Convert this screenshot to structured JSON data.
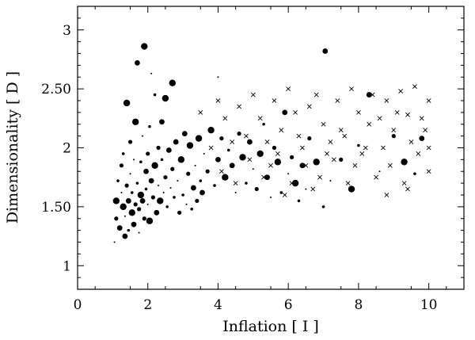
{
  "chart_data": {
    "type": "scatter",
    "xlabel": "Inflation [ I ]",
    "ylabel": "Dimensionality [ D ]",
    "xlim": [
      0,
      11
    ],
    "ylim": [
      0.8,
      3.2
    ],
    "xticks": [
      0,
      2,
      4,
      6,
      8,
      10
    ],
    "yticks": [
      1,
      1.5,
      2,
      2.5,
      3
    ],
    "xtick_labels": [
      "0",
      "2",
      "4",
      "6",
      "8",
      "10"
    ],
    "ytick_labels": [
      "1",
      "1.50",
      "2",
      "2.50",
      "3"
    ],
    "grid": false,
    "marker_color": "#000000",
    "series": [
      {
        "marker": "dot",
        "points": [
          [
            1.05,
            1.2
          ],
          [
            1.1,
            1.4
          ],
          [
            1.1,
            1.55
          ],
          [
            1.15,
            1.72
          ],
          [
            1.2,
            1.32
          ],
          [
            1.25,
            1.62
          ],
          [
            1.25,
            1.85
          ],
          [
            1.3,
            1.5
          ],
          [
            1.3,
            1.95
          ],
          [
            1.35,
            1.25
          ],
          [
            1.35,
            1.42
          ],
          [
            1.4,
            1.68
          ],
          [
            1.4,
            2.38
          ],
          [
            1.45,
            1.3
          ],
          [
            1.45,
            1.55
          ],
          [
            1.5,
            1.78
          ],
          [
            1.5,
            2.05
          ],
          [
            1.55,
            1.45
          ],
          [
            1.55,
            1.62
          ],
          [
            1.6,
            1.35
          ],
          [
            1.6,
            1.9
          ],
          [
            1.65,
            1.52
          ],
          [
            1.65,
            2.22
          ],
          [
            1.7,
            1.7
          ],
          [
            1.7,
            2.72
          ],
          [
            1.75,
            1.28
          ],
          [
            1.75,
            1.48
          ],
          [
            1.8,
            1.6
          ],
          [
            1.8,
            1.88
          ],
          [
            1.85,
            1.55
          ],
          [
            1.85,
            2.1
          ],
          [
            1.9,
            1.4
          ],
          [
            1.9,
            2.86
          ],
          [
            1.95,
            1.65
          ],
          [
            1.95,
            1.8
          ],
          [
            2.0,
            1.52
          ],
          [
            2.0,
            1.95
          ],
          [
            2.05,
            1.38
          ],
          [
            2.05,
            2.18
          ],
          [
            2.1,
            1.72
          ],
          [
            2.1,
            2.63
          ],
          [
            2.15,
            1.58
          ],
          [
            2.2,
            1.85
          ],
          [
            2.2,
            2.45
          ],
          [
            2.25,
            1.45
          ],
          [
            2.3,
            1.68
          ],
          [
            2.3,
            2.0
          ],
          [
            2.35,
            1.55
          ],
          [
            2.4,
            1.9
          ],
          [
            2.4,
            2.22
          ],
          [
            2.45,
            1.62
          ],
          [
            2.5,
            1.75
          ],
          [
            2.5,
            2.42
          ],
          [
            2.55,
            1.5
          ],
          [
            2.6,
            1.98
          ],
          [
            2.65,
            1.66
          ],
          [
            2.7,
            1.82
          ],
          [
            2.7,
            2.55
          ],
          [
            2.75,
            1.58
          ],
          [
            2.8,
            2.05
          ],
          [
            2.85,
            1.72
          ],
          [
            2.9,
            1.45
          ],
          [
            2.95,
            1.9
          ],
          [
            3.0,
            1.6
          ],
          [
            3.05,
            2.12
          ],
          [
            3.1,
            1.52
          ],
          [
            3.15,
            1.78
          ],
          [
            3.2,
            2.02
          ],
          [
            3.25,
            1.48
          ],
          [
            3.3,
            1.66
          ],
          [
            3.35,
            1.85
          ],
          [
            3.4,
            1.55
          ],
          [
            3.45,
            2.08
          ],
          [
            3.5,
            1.72
          ],
          [
            3.55,
            1.62
          ],
          [
            3.6,
            1.95
          ],
          [
            3.7,
            1.8
          ],
          [
            3.8,
            2.15
          ],
          [
            3.9,
            1.68
          ],
          [
            4.0,
            1.9
          ],
          [
            4.0,
            2.6
          ],
          [
            4.1,
            2.08
          ],
          [
            4.2,
            1.75
          ],
          [
            4.3,
            1.98
          ],
          [
            4.4,
            1.85
          ],
          [
            4.5,
            1.62
          ],
          [
            4.6,
            2.12
          ],
          [
            4.7,
            1.92
          ],
          [
            4.8,
            1.7
          ],
          [
            4.9,
            2.05
          ],
          [
            5.0,
            1.82
          ],
          [
            5.1,
            1.65
          ],
          [
            5.2,
            1.95
          ],
          [
            5.3,
            2.2
          ],
          [
            5.4,
            1.75
          ],
          [
            5.5,
            1.58
          ],
          [
            5.6,
            2.0
          ],
          [
            5.7,
            1.88
          ],
          [
            5.8,
            1.62
          ],
          [
            5.9,
            2.3
          ],
          [
            6.0,
            1.78
          ],
          [
            6.1,
            1.92
          ],
          [
            6.2,
            1.7
          ],
          [
            6.3,
            1.55
          ],
          [
            6.4,
            1.85
          ],
          [
            6.5,
            1.65
          ],
          [
            6.6,
            2.08
          ],
          [
            6.8,
            1.88
          ],
          [
            7.0,
            1.5
          ],
          [
            7.05,
            2.82
          ],
          [
            7.2,
            1.72
          ],
          [
            7.5,
            1.9
          ],
          [
            7.8,
            1.65
          ],
          [
            8.0,
            2.02
          ],
          [
            8.3,
            2.45
          ],
          [
            8.6,
            1.8
          ],
          [
            9.0,
            2.1
          ],
          [
            9.3,
            1.88
          ],
          [
            9.6,
            1.78
          ],
          [
            9.8,
            2.08
          ]
        ]
      },
      {
        "marker": "cross",
        "points": [
          [
            3.5,
            2.3
          ],
          [
            3.8,
            2.0
          ],
          [
            4.0,
            2.4
          ],
          [
            4.2,
            2.25
          ],
          [
            4.4,
            2.05
          ],
          [
            4.6,
            2.35
          ],
          [
            4.8,
            2.1
          ],
          [
            5.0,
            2.45
          ],
          [
            5.2,
            2.25
          ],
          [
            5.4,
            2.05
          ],
          [
            5.6,
            2.4
          ],
          [
            5.8,
            2.15
          ],
          [
            6.0,
            2.5
          ],
          [
            6.2,
            2.3
          ],
          [
            6.4,
            2.0
          ],
          [
            6.6,
            2.35
          ],
          [
            6.8,
            2.45
          ],
          [
            7.0,
            2.2
          ],
          [
            7.2,
            2.05
          ],
          [
            7.4,
            2.4
          ],
          [
            7.6,
            2.1
          ],
          [
            7.8,
            2.5
          ],
          [
            8.0,
            2.3
          ],
          [
            8.2,
            2.0
          ],
          [
            8.4,
            2.45
          ],
          [
            8.6,
            2.25
          ],
          [
            8.8,
            2.4
          ],
          [
            9.0,
            2.15
          ],
          [
            9.2,
            2.48
          ],
          [
            9.4,
            2.28
          ],
          [
            9.6,
            2.52
          ],
          [
            9.8,
            2.25
          ],
          [
            10.0,
            2.4
          ],
          [
            4.1,
            1.8
          ],
          [
            4.5,
            1.7
          ],
          [
            4.9,
            1.9
          ],
          [
            5.3,
            1.75
          ],
          [
            5.7,
            1.95
          ],
          [
            6.1,
            1.7
          ],
          [
            6.5,
            1.85
          ],
          [
            6.9,
            1.75
          ],
          [
            7.3,
            1.9
          ],
          [
            7.7,
            1.7
          ],
          [
            8.1,
            1.95
          ],
          [
            8.5,
            1.75
          ],
          [
            8.9,
            1.85
          ],
          [
            9.3,
            1.7
          ],
          [
            9.7,
            1.95
          ],
          [
            10.0,
            1.8
          ],
          [
            7.1,
            1.95
          ],
          [
            7.5,
            2.15
          ],
          [
            7.9,
            1.85
          ],
          [
            8.3,
            2.2
          ],
          [
            8.7,
            2.0
          ],
          [
            9.1,
            2.3
          ],
          [
            9.5,
            2.05
          ],
          [
            9.9,
            2.15
          ],
          [
            6.3,
            2.1
          ],
          [
            6.7,
            1.65
          ],
          [
            5.5,
            1.85
          ],
          [
            5.9,
            1.6
          ],
          [
            8.8,
            1.6
          ],
          [
            9.4,
            1.65
          ],
          [
            10.0,
            2.0
          ]
        ]
      }
    ]
  }
}
